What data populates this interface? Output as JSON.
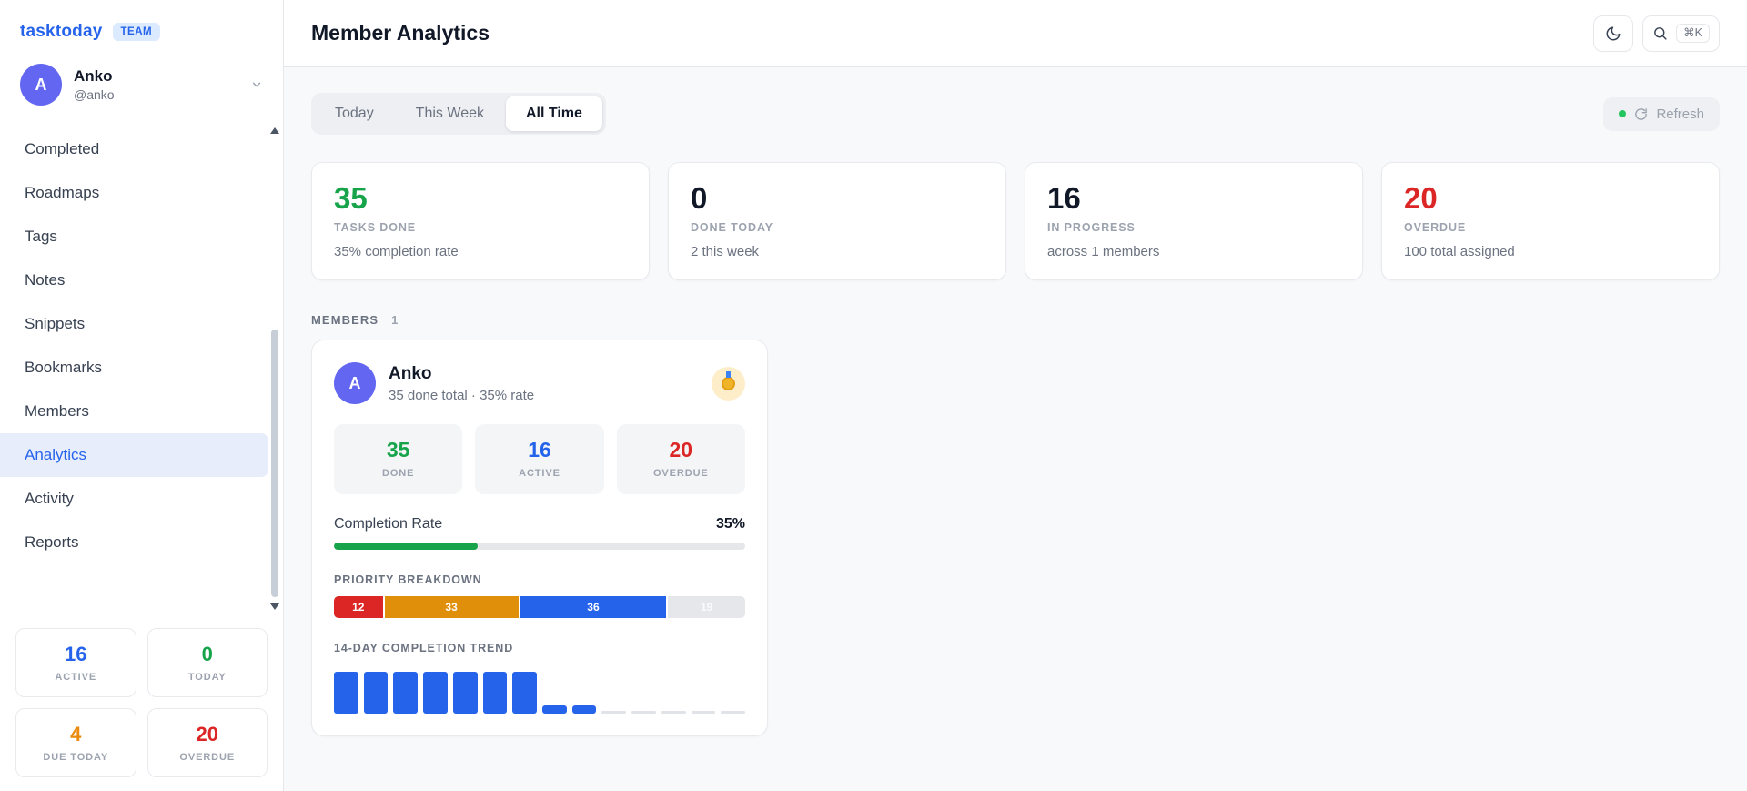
{
  "app": {
    "logo": "tasktoday",
    "badge": "TEAM"
  },
  "user": {
    "initial": "A",
    "name": "Anko",
    "handle": "@anko"
  },
  "sidebar": {
    "items": [
      {
        "label": "Completed"
      },
      {
        "label": "Roadmaps"
      },
      {
        "label": "Tags"
      },
      {
        "label": "Notes"
      },
      {
        "label": "Snippets"
      },
      {
        "label": "Bookmarks"
      },
      {
        "label": "Members"
      },
      {
        "label": "Analytics",
        "active": true
      },
      {
        "label": "Activity"
      },
      {
        "label": "Reports"
      }
    ],
    "footer_stats": [
      {
        "value": "16",
        "label": "ACTIVE",
        "color": "#2563eb"
      },
      {
        "value": "0",
        "label": "TODAY",
        "color": "#16a34a"
      },
      {
        "value": "4",
        "label": "DUE TODAY",
        "color": "#ea8a0b"
      },
      {
        "value": "20",
        "label": "OVERDUE",
        "color": "#dc2626"
      }
    ]
  },
  "header": {
    "title": "Member Analytics",
    "shortcut": "⌘K",
    "icons": [
      "moon-icon",
      "search-icon"
    ]
  },
  "tabs": [
    {
      "label": "Today"
    },
    {
      "label": "This Week"
    },
    {
      "label": "All Time",
      "active": true
    }
  ],
  "refresh": {
    "label": "Refresh",
    "status_color": "#22c55e"
  },
  "stat_cards": [
    {
      "value": "35",
      "label": "TASKS DONE",
      "sub": "35% completion rate",
      "color": "#16a34a"
    },
    {
      "value": "0",
      "label": "DONE TODAY",
      "sub": "2 this week",
      "color": "#111827"
    },
    {
      "value": "16",
      "label": "IN PROGRESS",
      "sub": "across 1 members",
      "color": "#111827"
    },
    {
      "value": "20",
      "label": "OVERDUE",
      "sub": "100 total assigned",
      "color": "#dc2626"
    }
  ],
  "members_section": {
    "label": "MEMBERS",
    "count": "1"
  },
  "member": {
    "initial": "A",
    "name": "Anko",
    "summary": "35 done total · 35% rate",
    "medal_icon": "medal",
    "stats": [
      {
        "value": "35",
        "label": "DONE",
        "color": "#16a34a"
      },
      {
        "value": "16",
        "label": "ACTIVE",
        "color": "#2563eb"
      },
      {
        "value": "20",
        "label": "OVERDUE",
        "color": "#dc2626"
      }
    ],
    "completion": {
      "label": "Completion Rate",
      "value": "35%",
      "percent": 35
    },
    "priority": {
      "label": "PRIORITY BREAKDOWN",
      "segments": [
        {
          "value": 12,
          "color": "#dc2626",
          "text_color": "#ffffff"
        },
        {
          "value": 33,
          "color": "#e08f0b",
          "text_color": "#ffffff"
        },
        {
          "value": 36,
          "color": "#2563eb",
          "text_color": "#ffffff"
        },
        {
          "value": 19,
          "color": "#e5e7eb",
          "text_color": "#fafbfc"
        }
      ]
    },
    "trend": {
      "label": "14-DAY COMPLETION TREND",
      "values": [
        5,
        5,
        5,
        5,
        5,
        5,
        5,
        1,
        1,
        0,
        0,
        0,
        0,
        0
      ]
    }
  },
  "chart_data": [
    {
      "type": "bar",
      "title": "PRIORITY BREAKDOWN",
      "categories": [
        "segment-1",
        "segment-2",
        "segment-3",
        "segment-4"
      ],
      "values": [
        12,
        33,
        36,
        19
      ],
      "colors": [
        "#dc2626",
        "#e08f0b",
        "#2563eb",
        "#e5e7eb"
      ],
      "orientation": "horizontal-stacked",
      "total": 100
    },
    {
      "type": "bar",
      "title": "14-DAY COMPLETION TREND",
      "categories": [
        "d1",
        "d2",
        "d3",
        "d4",
        "d5",
        "d6",
        "d7",
        "d8",
        "d9",
        "d10",
        "d11",
        "d12",
        "d13",
        "d14"
      ],
      "values": [
        5,
        5,
        5,
        5,
        5,
        5,
        5,
        1,
        1,
        0,
        0,
        0,
        0,
        0
      ],
      "color": "#2563eb"
    }
  ]
}
